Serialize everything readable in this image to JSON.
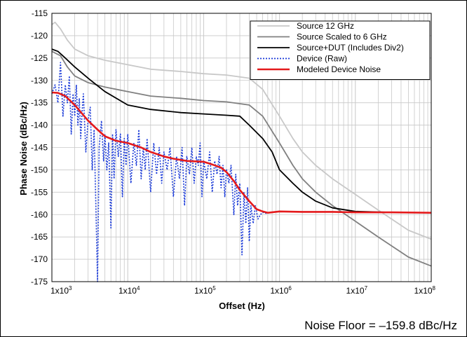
{
  "footer_note": "Noise Floor = –159.8 dBc/Hz",
  "chart_data": {
    "type": "line",
    "title": "",
    "xlabel": "Offset (Hz)",
    "ylabel": "Phase Noise (dBc/Hz)",
    "xscale": "log",
    "xlim": [
      1000,
      100000000
    ],
    "ylim": [
      -175,
      -115
    ],
    "grid": true,
    "legend_position": "top-right",
    "x_tick_labels": [
      "1x10",
      "1x10",
      "1x10",
      "1x10",
      "1x10",
      "1x10"
    ],
    "x_tick_exponents": [
      "3",
      "4",
      "5",
      "6",
      "7",
      "8"
    ],
    "y_ticks": [
      -115,
      -120,
      -125,
      -130,
      -135,
      -140,
      -145,
      -150,
      -155,
      -160,
      -165,
      -170,
      -175
    ],
    "series": [
      {
        "name": "Source 12 GHz",
        "color": "#c8c8c8",
        "style": "solid",
        "points": [
          [
            1000,
            -117.5
          ],
          [
            1100,
            -117
          ],
          [
            1300,
            -118.5
          ],
          [
            1600,
            -121
          ],
          [
            2000,
            -123
          ],
          [
            3000,
            -124.5
          ],
          [
            5000,
            -125.5
          ],
          [
            10000,
            -126.5
          ],
          [
            20000,
            -127.5
          ],
          [
            50000,
            -128
          ],
          [
            100000,
            -128.5
          ],
          [
            200000,
            -128.8
          ],
          [
            400000,
            -129.5
          ],
          [
            600000,
            -132
          ],
          [
            1000000,
            -138
          ],
          [
            1500000,
            -143
          ],
          [
            2000000,
            -146
          ],
          [
            3000000,
            -149
          ],
          [
            5000000,
            -152
          ],
          [
            10000000,
            -155.5
          ],
          [
            20000000,
            -159
          ],
          [
            50000000,
            -163.5
          ],
          [
            100000000,
            -165.5
          ]
        ]
      },
      {
        "name": "Source Scaled to 6 GHz",
        "color": "#808080",
        "style": "solid",
        "points": [
          [
            1000,
            -123.5
          ],
          [
            1300,
            -124.5
          ],
          [
            1600,
            -127
          ],
          [
            2000,
            -129
          ],
          [
            3000,
            -130.5
          ],
          [
            5000,
            -131.5
          ],
          [
            10000,
            -132.5
          ],
          [
            20000,
            -133.5
          ],
          [
            50000,
            -134
          ],
          [
            100000,
            -134.5
          ],
          [
            200000,
            -134.8
          ],
          [
            400000,
            -135.5
          ],
          [
            600000,
            -138
          ],
          [
            1000000,
            -144
          ],
          [
            1500000,
            -149
          ],
          [
            2000000,
            -152
          ],
          [
            3000000,
            -155
          ],
          [
            5000000,
            -158
          ],
          [
            10000000,
            -161.5
          ],
          [
            20000000,
            -165
          ],
          [
            50000000,
            -169.5
          ],
          [
            100000000,
            -171.5
          ]
        ]
      },
      {
        "name": "Source+DUT (Includes Div2)",
        "color": "#000000",
        "style": "solid",
        "points": [
          [
            1000,
            -123
          ],
          [
            1200,
            -123.5
          ],
          [
            1500,
            -125
          ],
          [
            2000,
            -127
          ],
          [
            3000,
            -129.5
          ],
          [
            5000,
            -132.5
          ],
          [
            10000,
            -135.5
          ],
          [
            20000,
            -136.5
          ],
          [
            50000,
            -137.2
          ],
          [
            100000,
            -137.5
          ],
          [
            200000,
            -137.8
          ],
          [
            300000,
            -138
          ],
          [
            400000,
            -140
          ],
          [
            600000,
            -143
          ],
          [
            800000,
            -146
          ],
          [
            1000000,
            -150
          ],
          [
            1500000,
            -153
          ],
          [
            2000000,
            -155
          ],
          [
            3000000,
            -157
          ],
          [
            5000000,
            -158.5
          ],
          [
            10000000,
            -159.3
          ],
          [
            30000000,
            -159.5
          ],
          [
            100000000,
            -159.6
          ]
        ]
      },
      {
        "name": "Device (Raw)",
        "color": "#1a3ad8",
        "style": "dotted",
        "points": [
          [
            1000,
            -133
          ],
          [
            1100,
            -131
          ],
          [
            1200,
            -135
          ],
          [
            1300,
            -126
          ],
          [
            1400,
            -138
          ],
          [
            1500,
            -131
          ],
          [
            1600,
            -135
          ],
          [
            1700,
            -129
          ],
          [
            1800,
            -142
          ],
          [
            1900,
            -133
          ],
          [
            2000,
            -138
          ],
          [
            2100,
            -131
          ],
          [
            2200,
            -140
          ],
          [
            2300,
            -134
          ],
          [
            2400,
            -143
          ],
          [
            2500,
            -137
          ],
          [
            2600,
            -133
          ],
          [
            2800,
            -146
          ],
          [
            3000,
            -139
          ],
          [
            3200,
            -136
          ],
          [
            3400,
            -150
          ],
          [
            3600,
            -141
          ],
          [
            3800,
            -158
          ],
          [
            4000,
            -175
          ],
          [
            4200,
            -145
          ],
          [
            4500,
            -139
          ],
          [
            4800,
            -148
          ],
          [
            5000,
            -142
          ],
          [
            5300,
            -150
          ],
          [
            5600,
            -144
          ],
          [
            6000,
            -163
          ],
          [
            6300,
            -142
          ],
          [
            6600,
            -152
          ],
          [
            7000,
            -141
          ],
          [
            7500,
            -147
          ],
          [
            8000,
            -142
          ],
          [
            8500,
            -156
          ],
          [
            9000,
            -143
          ],
          [
            9500,
            -149
          ],
          [
            10000,
            -142
          ],
          [
            11000,
            -153
          ],
          [
            12000,
            -144
          ],
          [
            13000,
            -149
          ],
          [
            14000,
            -141
          ],
          [
            15000,
            -152
          ],
          [
            16000,
            -145
          ],
          [
            17000,
            -150
          ],
          [
            18000,
            -143
          ],
          [
            20000,
            -155
          ],
          [
            22000,
            -144
          ],
          [
            24000,
            -151
          ],
          [
            26000,
            -145
          ],
          [
            28000,
            -153
          ],
          [
            30000,
            -146
          ],
          [
            33000,
            -150
          ],
          [
            36000,
            -145
          ],
          [
            40000,
            -156
          ],
          [
            44000,
            -147
          ],
          [
            48000,
            -152
          ],
          [
            52000,
            -145
          ],
          [
            56000,
            -158
          ],
          [
            60000,
            -147
          ],
          [
            65000,
            -151
          ],
          [
            70000,
            -145
          ],
          [
            75000,
            -153
          ],
          [
            80000,
            -147
          ],
          [
            85000,
            -149
          ],
          [
            90000,
            -144
          ],
          [
            95000,
            -156
          ],
          [
            100000,
            -148
          ],
          [
            110000,
            -152
          ],
          [
            120000,
            -146
          ],
          [
            130000,
            -155
          ],
          [
            140000,
            -148
          ],
          [
            150000,
            -151
          ],
          [
            160000,
            -147
          ],
          [
            170000,
            -154
          ],
          [
            180000,
            -149
          ],
          [
            190000,
            -156
          ],
          [
            200000,
            -150
          ],
          [
            215000,
            -153
          ],
          [
            230000,
            -149
          ],
          [
            250000,
            -160
          ],
          [
            265000,
            -151
          ],
          [
            280000,
            -158
          ],
          [
            300000,
            -153
          ],
          [
            320000,
            -169
          ],
          [
            340000,
            -155
          ],
          [
            360000,
            -162
          ],
          [
            380000,
            -154
          ],
          [
            400000,
            -166
          ],
          [
            420000,
            -158
          ],
          [
            450000,
            -162
          ],
          [
            480000,
            -158
          ],
          [
            520000,
            -161
          ],
          [
            560000,
            -160
          ],
          [
            600000,
            -159.5
          ],
          [
            700000,
            -159.8
          ]
        ]
      },
      {
        "name": "Modeled Device Noise",
        "color": "#e41a1c",
        "style": "solid",
        "points": [
          [
            1000,
            -132.7
          ],
          [
            1200,
            -132.8
          ],
          [
            1500,
            -133.5
          ],
          [
            2000,
            -135.5
          ],
          [
            3000,
            -139
          ],
          [
            4000,
            -141
          ],
          [
            5000,
            -142.5
          ],
          [
            7000,
            -143.5
          ],
          [
            10000,
            -144
          ],
          [
            15000,
            -145
          ],
          [
            20000,
            -146
          ],
          [
            30000,
            -147
          ],
          [
            40000,
            -147.5
          ],
          [
            60000,
            -148
          ],
          [
            100000,
            -148.2
          ],
          [
            130000,
            -148.8
          ],
          [
            170000,
            -149.5
          ],
          [
            200000,
            -150.5
          ],
          [
            250000,
            -152.5
          ],
          [
            300000,
            -154.5
          ],
          [
            400000,
            -157
          ],
          [
            500000,
            -158.8
          ],
          [
            600000,
            -159.3
          ],
          [
            700000,
            -159.6
          ],
          [
            1000000,
            -159.3
          ],
          [
            2000000,
            -159.4
          ],
          [
            5000000,
            -159.4
          ],
          [
            10000000,
            -159.5
          ],
          [
            30000000,
            -159.5
          ],
          [
            100000000,
            -159.6
          ]
        ]
      }
    ]
  }
}
